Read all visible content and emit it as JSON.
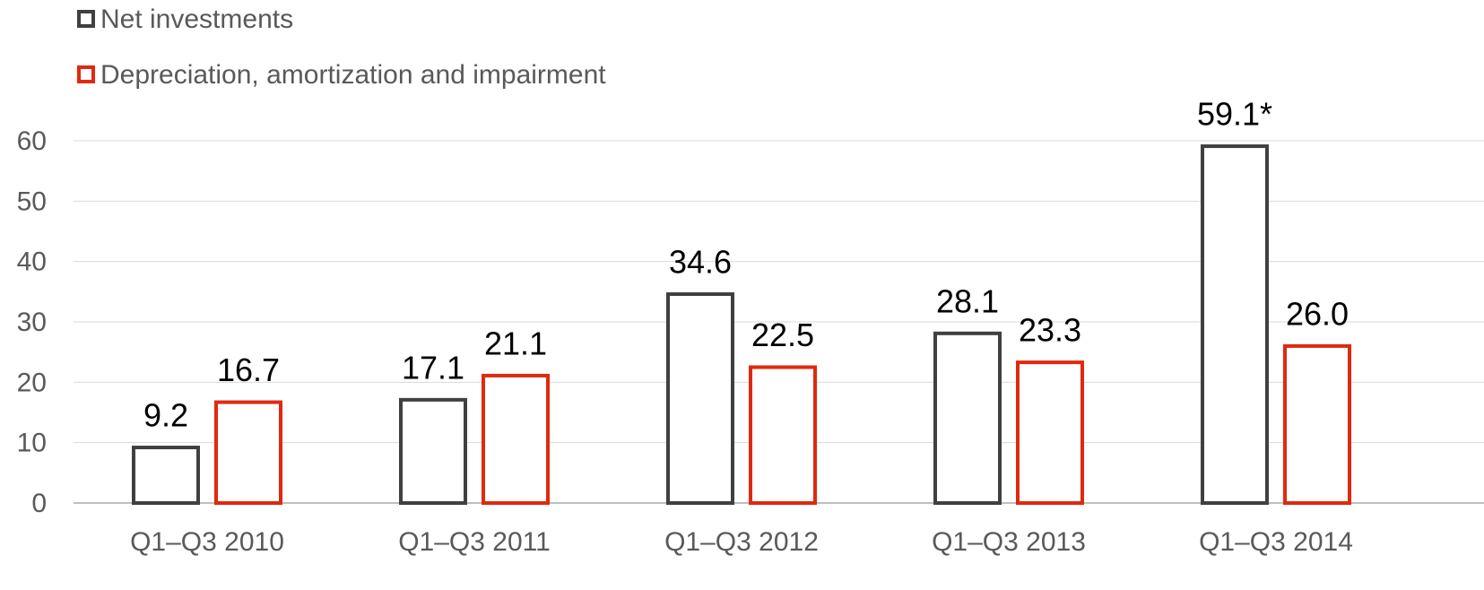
{
  "chart_data": {
    "type": "bar",
    "categories": [
      "Q1–Q3 2010",
      "Q1–Q3 2011",
      "Q1–Q3 2012",
      "Q1–Q3 2013",
      "Q1–Q3 2014"
    ],
    "series": [
      {
        "name": "Net investments",
        "color": "#404040",
        "values": [
          9.2,
          17.1,
          34.6,
          28.1,
          59.1
        ],
        "value_labels": [
          "9.2",
          "17.1",
          "34.6",
          "28.1",
          "59.1*"
        ]
      },
      {
        "name": "Depreciation, amortization and impairment",
        "color": "#e0290e",
        "values": [
          16.7,
          21.1,
          22.5,
          23.3,
          26.0
        ],
        "value_labels": [
          "16.7",
          "21.1",
          "22.5",
          "23.3",
          "26.0"
        ]
      }
    ],
    "ylim": [
      0,
      60
    ],
    "yticks": [
      0,
      10,
      20,
      30,
      40,
      50,
      60
    ],
    "grid": true,
    "legend": "top-left"
  }
}
